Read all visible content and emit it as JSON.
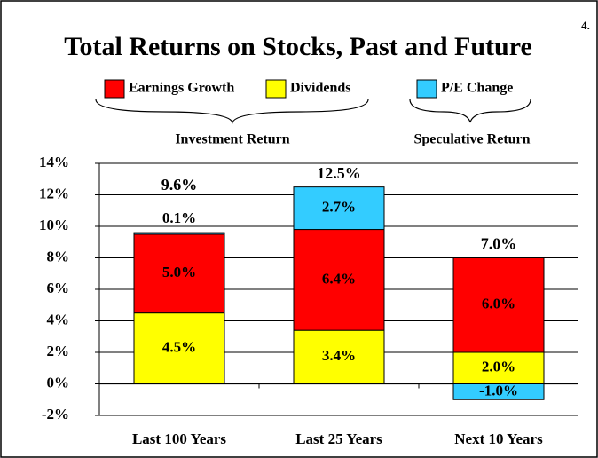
{
  "chart_data": {
    "type": "stacked_bar",
    "title": "Total Returns on Stocks, Past and Future",
    "page_number": "4.",
    "annotations": [
      "Investment Return",
      "Speculative Return"
    ],
    "categories": [
      "Last 100 Years",
      "Last 25 Years",
      "Next 10 Years"
    ],
    "series": [
      {
        "name": "Dividends",
        "color": "#ffff00",
        "values": [
          4.5,
          3.4,
          2.0
        ],
        "value_labels": [
          "4.5%",
          "3.4%",
          "2.0%"
        ]
      },
      {
        "name": "Earnings Growth",
        "color": "#ff0000",
        "values": [
          5.0,
          6.4,
          6.0
        ],
        "value_labels": [
          "5.0%",
          "6.4%",
          "6.0%"
        ]
      },
      {
        "name": "P/E Change",
        "color": "#33ccff",
        "values": [
          0.1,
          2.7,
          -1.0
        ],
        "value_labels": [
          "0.1%",
          "2.7%",
          "-1.0%"
        ]
      }
    ],
    "totals": [
      "9.6%",
      "12.5%",
      "7.0%"
    ],
    "ylim": [
      -2,
      14
    ],
    "yticks": [
      {
        "value": -2,
        "label": "-2%"
      },
      {
        "value": 0,
        "label": "0%"
      },
      {
        "value": 2,
        "label": "2%"
      },
      {
        "value": 4,
        "label": "4%"
      },
      {
        "value": 6,
        "label": "6%"
      },
      {
        "value": 8,
        "label": "8%"
      },
      {
        "value": 10,
        "label": "10%"
      },
      {
        "value": 12,
        "label": "12%"
      },
      {
        "value": 14,
        "label": "14%"
      }
    ],
    "grid": true
  }
}
